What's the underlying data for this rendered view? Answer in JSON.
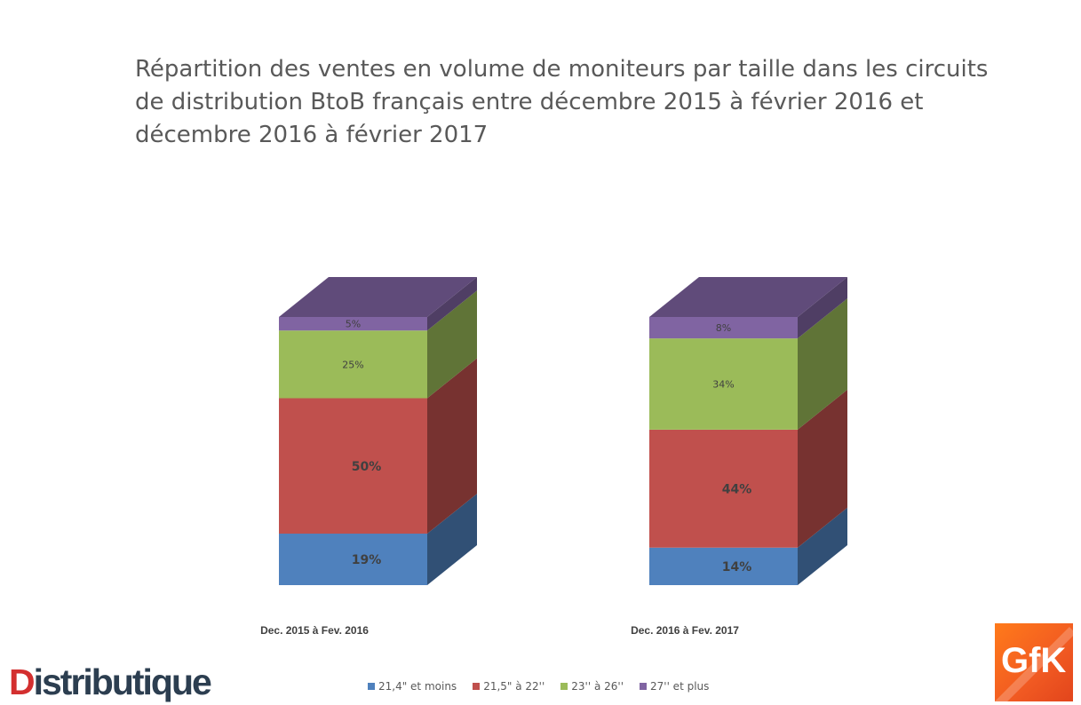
{
  "title": "Répartition des ventes en volume de moniteurs par taille dans les circuits de distribution BtoB français entre décembre 2015 à février 2016 et décembre 2016 à février 2017",
  "chart_data": {
    "type": "bar",
    "stacked": true,
    "style": "3d-column",
    "categories": [
      "Dec. 2015 à Fev. 2016",
      "Dec. 2016 à Fev. 2017"
    ],
    "series": [
      {
        "name": "21,4\" et moins",
        "values": [
          19,
          14
        ],
        "labels": [
          "19%",
          "14%"
        ],
        "color": "#4f81bd"
      },
      {
        "name": "21,5\" à 22''",
        "values": [
          50,
          44
        ],
        "labels": [
          "50%",
          "44%"
        ],
        "color": "#c0504d"
      },
      {
        "name": "23'' à 26''",
        "values": [
          25,
          34
        ],
        "labels": [
          "25%",
          "34%"
        ],
        "color": "#9bbb59"
      },
      {
        "name": "27'' et plus",
        "values": [
          5,
          8
        ],
        "labels": [
          "5%",
          "8%"
        ],
        "color": "#8064a2"
      }
    ],
    "ylim": [
      0,
      100
    ],
    "legend_position": "bottom",
    "grid": false
  },
  "logos": {
    "left": {
      "first": "D",
      "rest": "istributique"
    },
    "right": {
      "text": "GfK",
      "color": "#f15a22"
    }
  }
}
